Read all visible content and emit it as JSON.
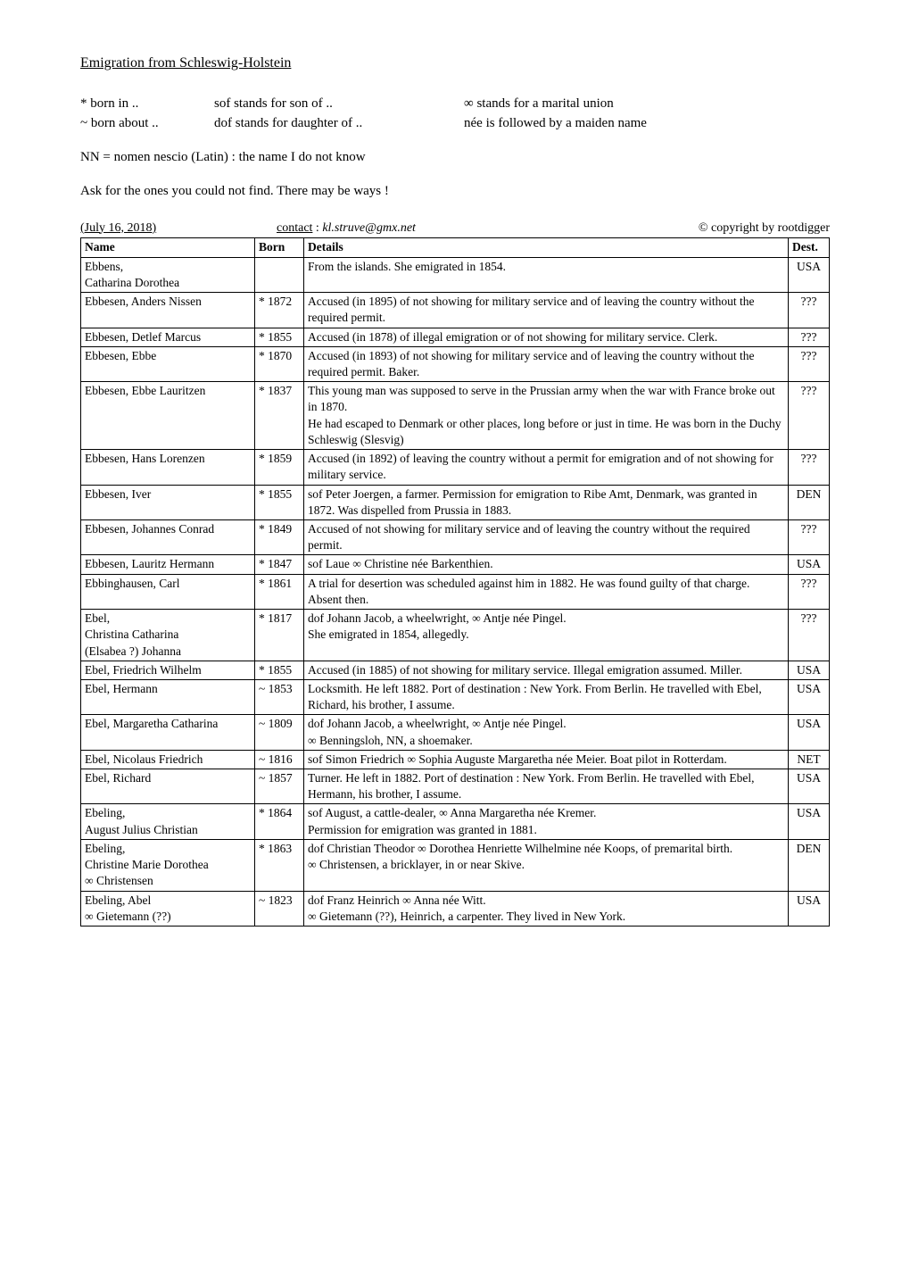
{
  "title": "Emigration from Schleswig-Holstein",
  "legend": {
    "row1": {
      "c1": "*  born in ..",
      "c2": "sof  stands for son of ..",
      "c3": "∞ stands for a marital union"
    },
    "row2": {
      "c1": "~  born about ..",
      "c2": "dof  stands for daughter of ..",
      "c3": "née is followed by a maiden name"
    }
  },
  "nn_line": "NN = nomen nescio (Latin) : the name I do not know",
  "ask_line": "Ask for the ones you could not find. There may be ways !",
  "meta": {
    "date": "(July 16, 2018)",
    "contact_label": "contact",
    "contact_sep": " :  ",
    "email": "kl.struve@gmx.net",
    "copyright": "© copyright by rootdigger"
  },
  "columns": {
    "name": "Name",
    "born": "Born",
    "details": "Details",
    "dest": "Dest."
  },
  "rows": [
    {
      "name": "Ebbens,\nCatharina Dorothea",
      "born": "",
      "details": "From the islands. She emigrated in 1854.",
      "dest": "USA"
    },
    {
      "name": "Ebbesen, Anders Nissen",
      "born": "* 1872",
      "details": "Accused (in 1895) of not showing for military service and of leaving the country without the required permit.",
      "dest": "???"
    },
    {
      "name": "Ebbesen, Detlef Marcus",
      "born": "* 1855",
      "details": "Accused (in 1878) of illegal emigration or of not showing for military service. Clerk.",
      "dest": "???"
    },
    {
      "name": "Ebbesen, Ebbe",
      "born": "* 1870",
      "details": "Accused (in 1893) of not showing for military service and of leaving the country without the required permit. Baker.",
      "dest": "???"
    },
    {
      "name": "Ebbesen, Ebbe Lauritzen",
      "born": "* 1837",
      "details": "This young man was supposed to serve in the Prussian army when the war with France broke out in 1870.\nHe had escaped to Denmark or other places, long before or just in time. He was born in the Duchy Schleswig (Slesvig)",
      "dest": "???"
    },
    {
      "name": "Ebbesen, Hans Lorenzen",
      "born": "* 1859",
      "details": "Accused (in 1892) of leaving the country without a permit for emigration and of not showing for military service.",
      "dest": "???"
    },
    {
      "name": "Ebbesen, Iver",
      "born": "* 1855",
      "details": "sof Peter Joergen, a farmer. Permission for emigration to Ribe Amt, Denmark, was granted in 1872. Was dispelled from Prussia in 1883.",
      "dest": "DEN"
    },
    {
      "name": "Ebbesen, Johannes Conrad",
      "born": "* 1849",
      "details": "Accused of not showing for military service and of leaving the country without the required permit.",
      "dest": "???"
    },
    {
      "name": "Ebbesen, Lauritz Hermann",
      "born": "* 1847",
      "details": "sof Laue ∞ Christine née Barkenthien.",
      "dest": "USA"
    },
    {
      "name": "Ebbinghausen, Carl",
      "born": "* 1861",
      "details": "A trial for desertion was scheduled against him in 1882. He was found guilty of that charge. Absent then.",
      "dest": "???"
    },
    {
      "name": "Ebel,\nChristina Catharina\n(Elsabea ?) Johanna",
      "born": "* 1817",
      "details": "dof Johann Jacob, a wheelwright, ∞ Antje née Pingel.\nShe emigrated in 1854, allegedly.",
      "dest": "???"
    },
    {
      "name": "Ebel, Friedrich Wilhelm",
      "born": "* 1855",
      "details": "Accused (in 1885) of not showing for military service. Illegal emigration assumed. Miller.",
      "dest": "USA"
    },
    {
      "name": "Ebel, Hermann",
      "born": "~ 1853",
      "details": "Locksmith. He left 1882. Port of destination : New York. From Berlin. He travelled with Ebel, Richard, his brother, I assume.",
      "dest": "USA"
    },
    {
      "name": "Ebel, Margaretha Catharina",
      "born": "~ 1809",
      "details": "dof Johann Jacob, a wheelwright, ∞ Antje née Pingel.\n∞ Benningsloh, NN, a shoemaker.",
      "dest": "USA"
    },
    {
      "name": "Ebel, Nicolaus Friedrich",
      "born": "~ 1816",
      "details": "sof Simon Friedrich ∞ Sophia Auguste Margaretha née Meier. Boat pilot in Rotterdam.",
      "dest": "NET"
    },
    {
      "name": "Ebel, Richard",
      "born": "~ 1857",
      "details": "Turner. He left in 1882. Port of destination : New York. From Berlin. He travelled with Ebel, Hermann, his brother, I assume.",
      "dest": "USA"
    },
    {
      "name": "Ebeling,\nAugust Julius Christian",
      "born": "* 1864",
      "details": "sof August, a cattle-dealer, ∞ Anna Margaretha née Kremer.\nPermission for emigration was granted in 1881.",
      "dest": "USA"
    },
    {
      "name": "Ebeling,\nChristine Marie Dorothea\n∞ Christensen",
      "born": "* 1863",
      "details": "dof Christian Theodor ∞ Dorothea Henriette Wilhelmine née Koops, of premarital birth.\n∞ Christensen, a bricklayer, in or near Skive.",
      "dest": "DEN"
    },
    {
      "name": "Ebeling, Abel\n∞ Gietemann (??)",
      "born": "~ 1823",
      "details": "dof Franz Heinrich ∞ Anna née Witt.\n∞ Gietemann (??), Heinrich, a carpenter. They lived in New York.",
      "dest": "USA"
    }
  ]
}
